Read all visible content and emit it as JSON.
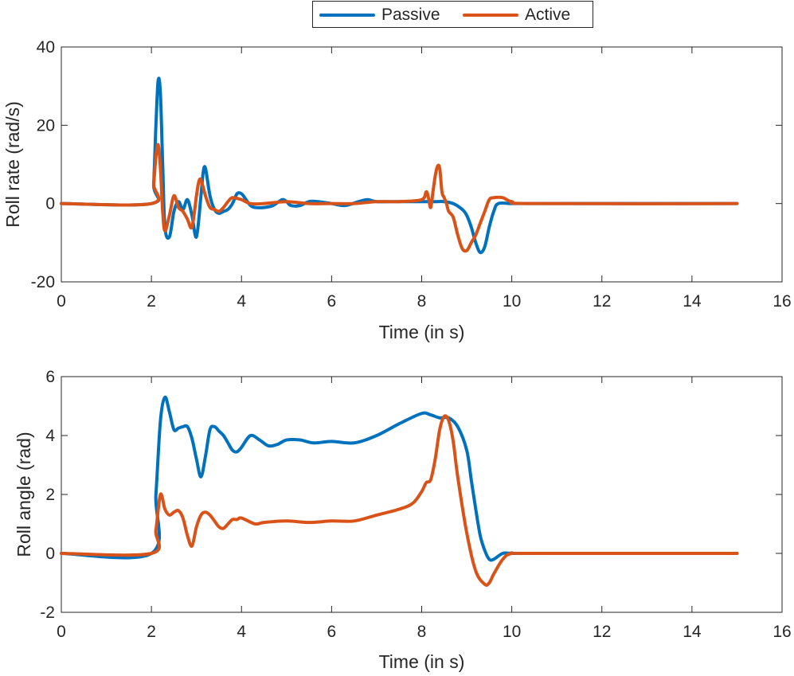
{
  "legend": {
    "position": "top-center",
    "entries": [
      {
        "name": "Passive",
        "color": "#0072BD"
      },
      {
        "name": "Active",
        "color": "#D95319"
      }
    ]
  },
  "chart_data": [
    {
      "type": "line",
      "xlabel": "Time (in s)",
      "ylabel": "Roll rate (rad/s)",
      "xlim": [
        0,
        16
      ],
      "ylim": [
        -20,
        40
      ],
      "xticks": [
        0,
        2,
        4,
        6,
        8,
        10,
        12,
        14,
        16
      ],
      "yticks": [
        -20,
        0,
        20,
        40
      ],
      "grid": false,
      "series": [
        {
          "name": "Passive",
          "color": "#0072BD",
          "x": [
            0,
            2.0,
            2.05,
            2.1,
            2.15,
            2.2,
            2.25,
            2.3,
            2.4,
            2.5,
            2.6,
            2.7,
            2.8,
            2.9,
            3.0,
            3.1,
            3.15,
            3.2,
            3.3,
            3.4,
            3.5,
            3.6,
            3.7,
            3.8,
            3.9,
            4.0,
            4.1,
            4.2,
            4.3,
            4.5,
            4.7,
            4.9,
            5.0,
            5.1,
            5.3,
            5.5,
            5.7,
            6.0,
            6.3,
            6.6,
            6.8,
            7.0,
            7.5,
            8.0,
            8.3,
            8.5,
            8.7,
            8.9,
            9.0,
            9.1,
            9.2,
            9.3,
            9.4,
            9.5,
            9.6,
            9.7,
            10.0,
            10.5,
            15
          ],
          "y": [
            0,
            0,
            5,
            20,
            31.5,
            28,
            10,
            -6,
            -8.5,
            -2,
            0.5,
            -1.5,
            1,
            -3,
            -8.5,
            2,
            8,
            9,
            2,
            -1.5,
            -2.5,
            -2,
            -1.5,
            0,
            2.5,
            2.5,
            1,
            -0.5,
            -1,
            -1,
            -0.5,
            1,
            0.5,
            -0.5,
            -0.5,
            0.5,
            0.5,
            0,
            -0.5,
            0.5,
            1,
            0.5,
            0.5,
            0.5,
            0.5,
            0.5,
            0,
            -1.5,
            -3,
            -6,
            -10,
            -12.5,
            -11,
            -6,
            -2,
            0,
            0,
            0,
            0
          ]
        },
        {
          "name": "Active",
          "color": "#D95319",
          "x": [
            0,
            2.0,
            2.05,
            2.1,
            2.15,
            2.2,
            2.25,
            2.3,
            2.4,
            2.5,
            2.6,
            2.7,
            2.8,
            2.9,
            3.0,
            3.05,
            3.1,
            3.2,
            3.3,
            3.4,
            3.5,
            3.6,
            3.7,
            3.8,
            4.0,
            4.2,
            4.5,
            5.0,
            5.5,
            6.0,
            6.5,
            7.0,
            7.5,
            8.0,
            8.1,
            8.15,
            8.2,
            8.25,
            8.3,
            8.35,
            8.4,
            8.45,
            8.5,
            8.55,
            8.6,
            8.7,
            8.8,
            8.9,
            9.0,
            9.1,
            9.2,
            9.3,
            9.4,
            9.5,
            9.6,
            9.8,
            10.0,
            10.5,
            15
          ],
          "y": [
            0,
            0,
            5,
            12,
            15,
            9,
            -2,
            -7,
            -3,
            2,
            -1,
            -2,
            -4,
            -6,
            2,
            5.5,
            6,
            2,
            -1,
            -1.5,
            -2,
            -1,
            0.5,
            1.5,
            1,
            0,
            0,
            0.5,
            0,
            0,
            0,
            0.5,
            0.5,
            1,
            3,
            1.5,
            -1,
            3,
            7,
            9.5,
            9,
            3,
            1.5,
            0,
            -2,
            -3.5,
            -8,
            -11.5,
            -12,
            -10,
            -8,
            -5,
            -2,
            1,
            1.5,
            1.5,
            0.5,
            0,
            0
          ]
        }
      ]
    },
    {
      "type": "line",
      "xlabel": "Time (in s)",
      "ylabel": "Roll angle (rad)",
      "xlim": [
        0,
        16
      ],
      "ylim": [
        -2,
        6
      ],
      "xticks": [
        0,
        2,
        4,
        6,
        8,
        10,
        12,
        14,
        16
      ],
      "yticks": [
        -2,
        0,
        2,
        4,
        6
      ],
      "grid": false,
      "series": [
        {
          "name": "Passive",
          "color": "#0072BD",
          "x": [
            0,
            2.0,
            2.1,
            2.2,
            2.3,
            2.4,
            2.5,
            2.6,
            2.7,
            2.8,
            2.9,
            3.0,
            3.1,
            3.2,
            3.3,
            3.4,
            3.5,
            3.6,
            3.7,
            3.8,
            3.9,
            4.0,
            4.2,
            4.4,
            4.6,
            4.8,
            5.0,
            5.3,
            5.6,
            6.0,
            6.5,
            7.0,
            7.5,
            8.0,
            8.2,
            8.4,
            8.6,
            8.8,
            9.0,
            9.1,
            9.2,
            9.3,
            9.4,
            9.5,
            9.6,
            9.8,
            10.0,
            10.5,
            15
          ],
          "y": [
            0,
            0,
            2,
            4.5,
            5.3,
            4.8,
            4.2,
            4.25,
            4.3,
            4.3,
            3.9,
            3.2,
            2.6,
            3.3,
            4.2,
            4.3,
            4.15,
            4.0,
            3.75,
            3.5,
            3.45,
            3.6,
            4.0,
            3.85,
            3.65,
            3.7,
            3.85,
            3.85,
            3.75,
            3.8,
            3.75,
            4.0,
            4.4,
            4.75,
            4.7,
            4.6,
            4.6,
            4.3,
            3.5,
            2.5,
            1.5,
            0.6,
            0.1,
            -0.2,
            -0.2,
            0,
            0,
            0,
            0
          ]
        },
        {
          "name": "Active",
          "color": "#D95319",
          "x": [
            0,
            2.0,
            2.1,
            2.2,
            2.3,
            2.4,
            2.5,
            2.6,
            2.7,
            2.8,
            2.9,
            3.0,
            3.1,
            3.2,
            3.3,
            3.4,
            3.5,
            3.6,
            3.7,
            3.8,
            3.9,
            4.0,
            4.3,
            4.5,
            5.0,
            5.5,
            6.0,
            6.5,
            7.0,
            7.5,
            7.8,
            8.0,
            8.1,
            8.2,
            8.3,
            8.4,
            8.5,
            8.6,
            8.7,
            8.8,
            9.0,
            9.2,
            9.4,
            9.5,
            9.6,
            9.8,
            10.0,
            10.5,
            15
          ],
          "y": [
            0,
            0,
            0.8,
            2.0,
            1.5,
            1.3,
            1.4,
            1.45,
            1.2,
            0.6,
            0.25,
            0.9,
            1.3,
            1.4,
            1.3,
            1.1,
            0.9,
            0.85,
            1.0,
            1.15,
            1.15,
            1.2,
            1.0,
            1.05,
            1.1,
            1.05,
            1.1,
            1.1,
            1.3,
            1.5,
            1.7,
            2.1,
            2.4,
            2.5,
            3.2,
            4.2,
            4.65,
            4.5,
            3.8,
            2.6,
            0.7,
            -0.6,
            -1.05,
            -1.0,
            -0.7,
            -0.2,
            0,
            0,
            0
          ]
        }
      ]
    }
  ]
}
